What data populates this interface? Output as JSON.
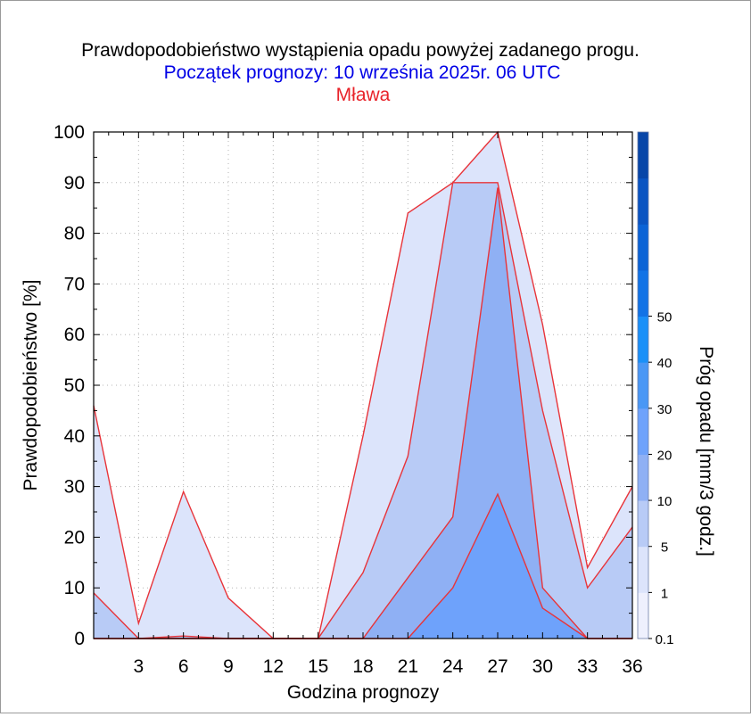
{
  "chart_data": {
    "type": "area",
    "title": "Prawdopodobieństwo wystąpienia opadu powyżej zadanego progu.",
    "subtitle": "Początek prognozy: 10 września 2025r. 06 UTC",
    "location": "Mława",
    "xlabel": "Godzina prognozy",
    "ylabel": "Prawdopodobieństwo [%]",
    "colorbar_label": "Próg opadu [mm/3 godz.]",
    "xlim": [
      0,
      36
    ],
    "ylim": [
      0,
      100
    ],
    "x_ticks": [
      3,
      6,
      9,
      12,
      15,
      18,
      21,
      24,
      27,
      30,
      33,
      36
    ],
    "y_ticks": [
      0,
      10,
      20,
      30,
      40,
      50,
      60,
      70,
      80,
      90,
      100
    ],
    "x": [
      0,
      3,
      6,
      9,
      12,
      15,
      18,
      21,
      24,
      27,
      30,
      33,
      36
    ],
    "series": [
      {
        "name": "0.1",
        "color": "#dce4fb",
        "values": [
          46,
          3,
          29,
          8,
          0,
          0,
          40,
          84,
          90,
          100,
          62,
          14,
          30
        ]
      },
      {
        "name": "1",
        "color": "#b8cbf6",
        "values": [
          9,
          0,
          0.5,
          0,
          0,
          0,
          13,
          36,
          90,
          90,
          45,
          10,
          22
        ]
      },
      {
        "name": "5",
        "color": "#8fb0f4",
        "values": [
          0,
          0,
          0,
          0,
          0,
          0,
          0,
          12,
          24,
          89,
          10,
          0,
          0
        ]
      },
      {
        "name": "10",
        "color": "#6ea2fb",
        "values": [
          0,
          0,
          0,
          0,
          0,
          0,
          0,
          0,
          10,
          28.5,
          6,
          0,
          0
        ]
      }
    ],
    "colorbar": {
      "colors": [
        "#eef0fd",
        "#dce4fb",
        "#b8cbf6",
        "#8fb0f4",
        "#6ea2fb",
        "#4a97f5",
        "#1a90f8",
        "#1273e6",
        "#0b63d6",
        "#0a54c2",
        "#0846a8"
      ],
      "labels": [
        "0.1",
        "1",
        "5",
        "10",
        "20",
        "30",
        "40",
        "50"
      ]
    },
    "grid": true,
    "line_color": "#e8343a"
  }
}
